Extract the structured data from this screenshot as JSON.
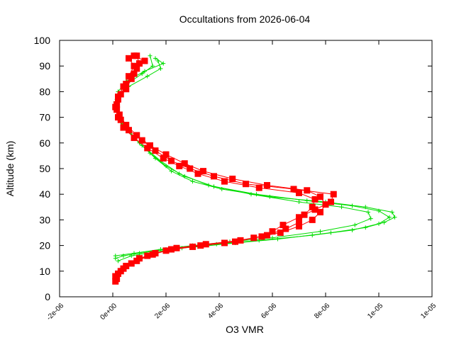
{
  "chart_data": {
    "type": "line",
    "title": "Occultations from 2026-06-04",
    "xlabel": "O3 VMR",
    "ylabel": "Altitude (km)",
    "xlim": [
      -2e-06,
      1.2e-05
    ],
    "ylim": [
      0,
      100
    ],
    "grid": false,
    "legend": "none",
    "x_tick_labels": [
      "-2e-06",
      "0e+00",
      "2e-06",
      "4e-06",
      "6e-06",
      "8e-06",
      "1e-05",
      "1e-05"
    ],
    "x_tick_values": [
      -2e-06,
      0,
      2e-06,
      4e-06,
      6e-06,
      8e-06,
      1e-05,
      1.2e-05
    ],
    "y_tick_labels": [
      "0",
      "10",
      "20",
      "30",
      "40",
      "50",
      "60",
      "70",
      "80",
      "90",
      "100"
    ],
    "y_tick_values": [
      0,
      10,
      20,
      30,
      40,
      50,
      60,
      70,
      80,
      90,
      100
    ],
    "series": [
      {
        "color": "#00dd00",
        "marker": "plus",
        "profiles": [
          [
            [
              1e-07,
              15
            ],
            [
              4e-07,
              16
            ],
            [
              1e-06,
              17
            ],
            [
              2e-06,
              18.5
            ],
            [
              3.2e-06,
              19.5
            ],
            [
              4.6e-06,
              21
            ],
            [
              6.2e-06,
              22.5
            ],
            [
              8.2e-06,
              25
            ],
            [
              9.5e-06,
              27
            ],
            [
              1.02e-05,
              29
            ],
            [
              1.06e-05,
              31
            ],
            [
              1.05e-05,
              33
            ],
            [
              9.5e-06,
              35
            ],
            [
              8e-06,
              37
            ],
            [
              5.9e-06,
              39
            ],
            [
              4.1e-06,
              42
            ],
            [
              3e-06,
              45
            ],
            [
              2.2e-06,
              49
            ],
            [
              1.6e-06,
              54
            ],
            [
              1e-06,
              60
            ],
            [
              5e-07,
              66
            ],
            [
              2e-07,
              71
            ],
            [
              1e-07,
              76
            ],
            [
              2e-07,
              80
            ],
            [
              5e-07,
              84
            ],
            [
              1.2e-06,
              88
            ],
            [
              1.9e-06,
              91
            ],
            [
              1.6e-06,
              93
            ]
          ],
          [
            [
              2e-07,
              14
            ],
            [
              7e-07,
              16
            ],
            [
              1.6e-06,
              17.5
            ],
            [
              2.6e-06,
              19
            ],
            [
              3.9e-06,
              20.5
            ],
            [
              5.5e-06,
              22
            ],
            [
              7.5e-06,
              24
            ],
            [
              9e-06,
              26
            ],
            [
              1e-05,
              28.5
            ],
            [
              1.04e-05,
              31
            ],
            [
              1e-05,
              33.5
            ],
            [
              9e-06,
              35.5
            ],
            [
              7.3e-06,
              37.5
            ],
            [
              5.4e-06,
              40
            ],
            [
              3.8e-06,
              43
            ],
            [
              2.7e-06,
              47
            ],
            [
              2e-06,
              51
            ],
            [
              1.4e-06,
              56
            ],
            [
              8e-07,
              62
            ],
            [
              3e-07,
              68
            ],
            [
              1e-07,
              73
            ],
            [
              2e-07,
              78
            ],
            [
              6e-07,
              82
            ],
            [
              1.3e-06,
              86
            ],
            [
              1.8e-06,
              89
            ],
            [
              1.7e-06,
              92
            ]
          ],
          [
            [
              1e-07,
              16
            ],
            [
              8e-07,
              17
            ],
            [
              1.8e-06,
              18.5
            ],
            [
              3e-06,
              20
            ],
            [
              4.4e-06,
              21.5
            ],
            [
              6e-06,
              23
            ],
            [
              7.8e-06,
              25.5
            ],
            [
              9.1e-06,
              28
            ],
            [
              9.7e-06,
              30.5
            ],
            [
              9.6e-06,
              33
            ],
            [
              8.6e-06,
              35
            ],
            [
              7e-06,
              37
            ],
            [
              5.2e-06,
              40
            ],
            [
              3.6e-06,
              43.5
            ],
            [
              2.5e-06,
              48
            ],
            [
              1.8e-06,
              53
            ],
            [
              1.1e-06,
              59
            ],
            [
              5e-07,
              65
            ],
            [
              2e-07,
              71
            ],
            [
              1.5e-07,
              77
            ],
            [
              4e-07,
              82
            ],
            [
              1.1e-06,
              87
            ],
            [
              1.5e-06,
              90
            ],
            [
              1.4e-06,
              94
            ]
          ]
        ]
      },
      {
        "color": "#ff0000",
        "marker": "square",
        "profiles": [
          [
            [
              1e-07,
              6
            ],
            [
              2e-07,
              9
            ],
            [
              5e-07,
              12
            ],
            [
              1e-06,
              15
            ],
            [
              1.6e-06,
              17
            ],
            [
              2.4e-06,
              19
            ],
            [
              3.5e-06,
              20.5
            ],
            [
              4.8e-06,
              22
            ],
            [
              5.8e-06,
              24
            ],
            [
              6.5e-06,
              26.5
            ],
            [
              7e-06,
              29
            ],
            [
              7.2e-06,
              32
            ],
            [
              7.5e-06,
              35
            ],
            [
              7.6e-06,
              38
            ],
            [
              7e-06,
              40.5
            ],
            [
              5.5e-06,
              42.5
            ],
            [
              4.2e-06,
              45
            ],
            [
              3.2e-06,
              48
            ],
            [
              2.5e-06,
              51
            ],
            [
              1.9e-06,
              54
            ],
            [
              1.3e-06,
              58
            ],
            [
              8e-07,
              62
            ],
            [
              4e-07,
              66
            ],
            [
              2e-07,
              70
            ],
            [
              1e-07,
              74
            ],
            [
              2e-07,
              78
            ],
            [
              4e-07,
              82
            ],
            [
              6e-07,
              86
            ],
            [
              8e-07,
              90
            ],
            [
              6e-07,
              93
            ]
          ],
          [
            [
              1.5e-07,
              7
            ],
            [
              3e-07,
              10
            ],
            [
              7e-07,
              13
            ],
            [
              1.3e-06,
              16
            ],
            [
              2e-06,
              18
            ],
            [
              3e-06,
              19.5
            ],
            [
              4.2e-06,
              21
            ],
            [
              5.3e-06,
              23
            ],
            [
              6.3e-06,
              25
            ],
            [
              7e-06,
              27.5
            ],
            [
              7.5e-06,
              30
            ],
            [
              7.8e-06,
              33
            ],
            [
              8e-06,
              36
            ],
            [
              7.8e-06,
              39
            ],
            [
              7.3e-06,
              41.5
            ],
            [
              5.8e-06,
              43.5
            ],
            [
              4.5e-06,
              46
            ],
            [
              3.4e-06,
              49
            ],
            [
              2.7e-06,
              52
            ],
            [
              2e-06,
              55.5
            ],
            [
              1.4e-06,
              59
            ],
            [
              9e-07,
              63
            ],
            [
              5e-07,
              67
            ],
            [
              2.5e-07,
              71
            ],
            [
              1.5e-07,
              75
            ],
            [
              3e-07,
              79
            ],
            [
              5e-07,
              83
            ],
            [
              8e-07,
              87
            ],
            [
              1e-06,
              91
            ],
            [
              9e-07,
              94
            ]
          ],
          [
            [
              1e-07,
              8
            ],
            [
              4e-07,
              11
            ],
            [
              9e-07,
              14
            ],
            [
              1.5e-06,
              16.5
            ],
            [
              2.2e-06,
              18.5
            ],
            [
              3.3e-06,
              20
            ],
            [
              4.6e-06,
              21.5
            ],
            [
              5.6e-06,
              23.5
            ],
            [
              6e-06,
              25.5
            ],
            [
              6.4e-06,
              28
            ],
            [
              7e-06,
              31
            ],
            [
              7.6e-06,
              34
            ],
            [
              8.2e-06,
              37
            ],
            [
              8.3e-06,
              40
            ],
            [
              6.8e-06,
              42
            ],
            [
              5e-06,
              44
            ],
            [
              3.8e-06,
              47
            ],
            [
              2.9e-06,
              50
            ],
            [
              2.2e-06,
              53
            ],
            [
              1.6e-06,
              57
            ],
            [
              1.1e-06,
              61
            ],
            [
              6e-07,
              65
            ],
            [
              3e-07,
              69
            ],
            [
              1.5e-07,
              73
            ],
            [
              2e-07,
              77
            ],
            [
              5e-07,
              81
            ],
            [
              7e-07,
              85
            ],
            [
              9e-07,
              89
            ],
            [
              1.2e-06,
              92
            ],
            [
              8e-07,
              94
            ]
          ]
        ]
      }
    ]
  }
}
